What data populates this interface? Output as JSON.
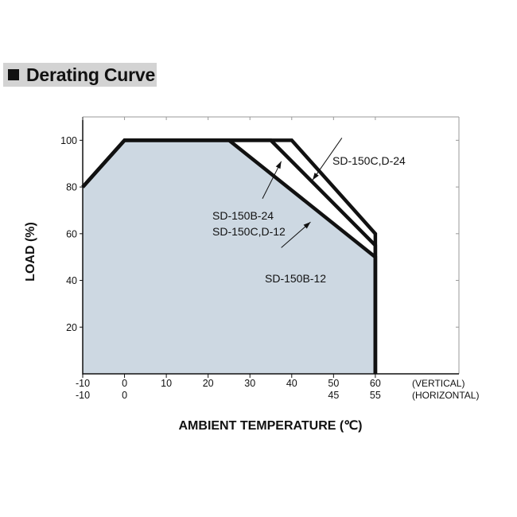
{
  "header": {
    "title": "Derating Curve"
  },
  "colors": {
    "fill": "#cdd8e2",
    "line": "#111111",
    "grid": "#9a9a9a"
  },
  "chart_data": {
    "type": "area",
    "xlabel": "AMBIENT TEMPERATURE (℃)",
    "ylabel": "LOAD (%)",
    "xlim": [
      -10,
      80
    ],
    "ylim": [
      0,
      110
    ],
    "x_ticks": [
      -10,
      0,
      10,
      20,
      30,
      40,
      50,
      60
    ],
    "y_ticks": [
      20,
      40,
      60,
      80,
      100
    ],
    "x_tick_labels_vertical": [
      "-10",
      "0",
      "10",
      "20",
      "30",
      "40",
      "50",
      "60"
    ],
    "x_tick_labels_horizontal": [
      "-10",
      "0",
      "",
      "",
      "",
      "",
      "45",
      "55"
    ],
    "axis_mode_labels": {
      "vertical": "(VERTICAL)",
      "horizontal": "(HORIZONTAL)"
    },
    "series": [
      {
        "name": "SD-150B-12",
        "x": [
          -10,
          0,
          25,
          60,
          60
        ],
        "y": [
          80,
          100,
          100,
          50,
          0
        ]
      },
      {
        "name": "SD-150B-24\nSD-150C,D-12",
        "x": [
          -10,
          0,
          35,
          60,
          60
        ],
        "y": [
          80,
          100,
          100,
          55,
          0
        ]
      },
      {
        "name": "SD-150C,D-24",
        "x": [
          -10,
          0,
          40,
          60,
          60
        ],
        "y": [
          80,
          100,
          100,
          60,
          0
        ]
      }
    ],
    "annotations": [
      {
        "text": "SD-150C,D-24",
        "lines": [
          "SD-150C,D-24"
        ],
        "target": [
          45,
          83
        ],
        "anchor": [
          52,
          101
        ]
      },
      {
        "text": "SD-150B-24 / SD-150C,D-12",
        "lines": [
          "SD-150B-24",
          "SD-150C,D-12"
        ],
        "target": [
          37.5,
          91
        ],
        "anchor": [
          33,
          75
        ]
      },
      {
        "text": "SD-150B-12",
        "lines": [
          "SD-150B-12"
        ],
        "target": [
          44.5,
          65
        ],
        "anchor": [
          37.5,
          54
        ]
      }
    ]
  }
}
